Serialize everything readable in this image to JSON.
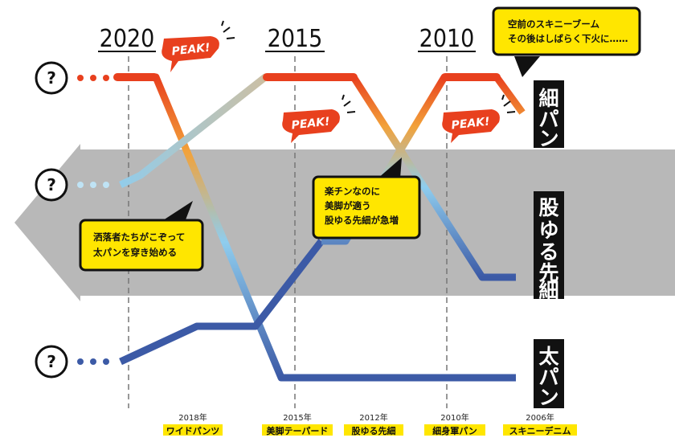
{
  "timeline": {
    "years": [
      "2020",
      "2015",
      "2010"
    ]
  },
  "categories": {
    "slim": "細パン",
    "tapered": "股ゆる先細",
    "wide": "太パン"
  },
  "future_marker": "?",
  "peak_label": "PEAK!",
  "callouts": {
    "slim_boom": [
      "空前のスキニーブーム",
      "その後はしばらく下火に……"
    ],
    "tapered_rise": [
      "楽チンなのに",
      "美脚が適う",
      "股ゆる先細が急増"
    ],
    "wide_start": [
      "洒落者たちがこぞって",
      "太パンを穿き始める"
    ]
  },
  "milestones": [
    {
      "year": "2018年",
      "name": "ワイドパンツ"
    },
    {
      "year": "2015年",
      "name": "美脚テーパード"
    },
    {
      "year": "2012年",
      "name": "股ゆる先細"
    },
    {
      "year": "2010年",
      "name": "細身軍パン"
    },
    {
      "year": "2006年",
      "name": "スキニーデニム"
    }
  ],
  "colors": {
    "peak_red": "#e8401e",
    "trend_orange": "#f2a23a",
    "trend_lightblue": "#8fcdee",
    "trend_navy": "#3c5aa6",
    "band_gray": "#b8b8b8",
    "callout_yellow": "#ffe600"
  }
}
